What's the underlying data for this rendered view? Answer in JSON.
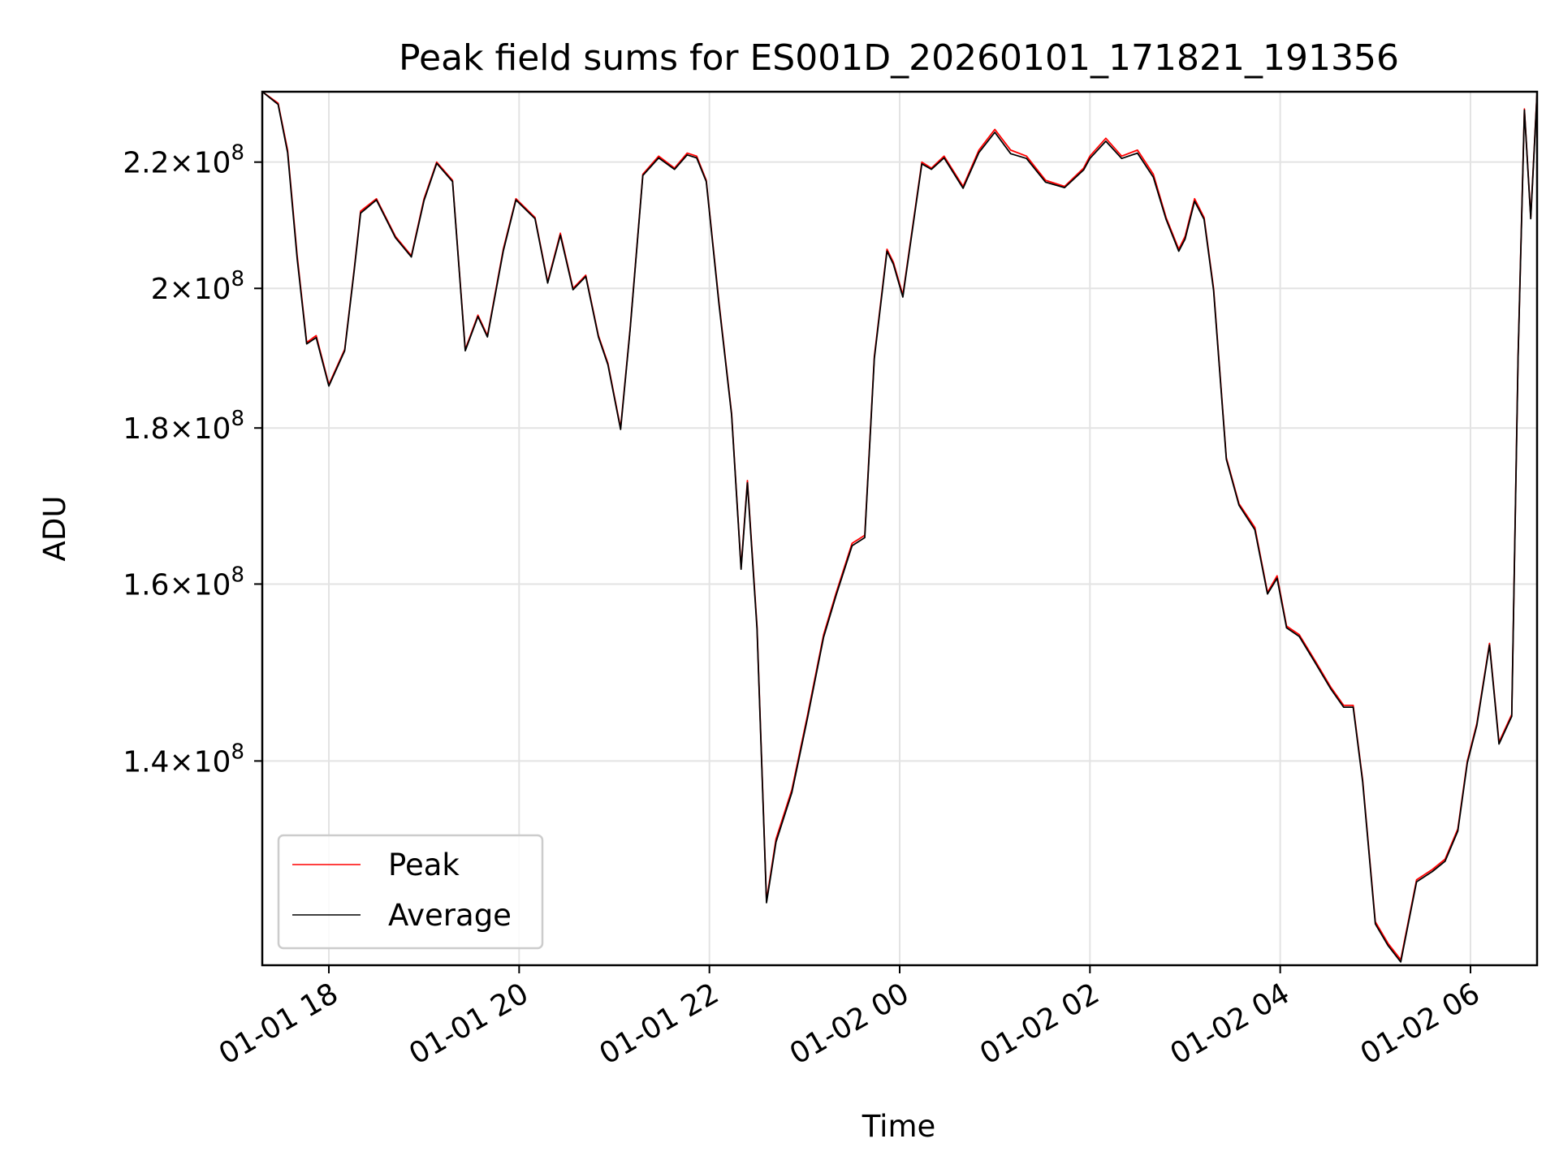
{
  "chart_data": {
    "type": "line",
    "title": "Peak field sums for ES001D_20260101_171821_191356",
    "xlabel": "Time",
    "ylabel": "ADU",
    "y_scale": "log",
    "grid": true,
    "legend_placement": "lower-left",
    "xlim": [
      "2026-01-01 17:18",
      "2026-01-02 06:42"
    ],
    "ylim": [
      120000000,
      232000000
    ],
    "x_ticks": [
      {
        "value": "2026-01-01 18:00",
        "label": "01-01 18"
      },
      {
        "value": "2026-01-01 20:00",
        "label": "01-01 20"
      },
      {
        "value": "2026-01-01 22:00",
        "label": "01-01 22"
      },
      {
        "value": "2026-01-02 00:00",
        "label": "01-02 00"
      },
      {
        "value": "2026-01-02 02:00",
        "label": "01-02 02"
      },
      {
        "value": "2026-01-02 04:00",
        "label": "01-02 04"
      },
      {
        "value": "2026-01-02 06:00",
        "label": "01-02 06"
      }
    ],
    "y_ticks": [
      {
        "value": 140000000,
        "label_mantissa": "1.4",
        "label_exponent": "8"
      },
      {
        "value": 160000000,
        "label_mantissa": "1.6",
        "label_exponent": "8"
      },
      {
        "value": 180000000,
        "label_mantissa": "1.8",
        "label_exponent": "8"
      },
      {
        "value": 200000000,
        "label_mantissa": "2",
        "label_exponent": "8"
      },
      {
        "value": 220000000,
        "label_mantissa": "2.2",
        "label_exponent": "8"
      }
    ],
    "x": [
      "2026-01-01 17:18",
      "2026-01-01 17:28",
      "2026-01-01 17:34",
      "2026-01-01 17:40",
      "2026-01-01 17:46",
      "2026-01-01 17:52",
      "2026-01-01 18:00",
      "2026-01-01 18:10",
      "2026-01-01 18:16",
      "2026-01-01 18:20",
      "2026-01-01 18:30",
      "2026-01-01 18:42",
      "2026-01-01 18:52",
      "2026-01-01 19:00",
      "2026-01-01 19:08",
      "2026-01-01 19:18",
      "2026-01-01 19:26",
      "2026-01-01 19:34",
      "2026-01-01 19:40",
      "2026-01-01 19:50",
      "2026-01-01 19:58",
      "2026-01-01 20:10",
      "2026-01-01 20:18",
      "2026-01-01 20:26",
      "2026-01-01 20:34",
      "2026-01-01 20:42",
      "2026-01-01 20:50",
      "2026-01-01 20:56",
      "2026-01-01 21:04",
      "2026-01-01 21:10",
      "2026-01-01 21:18",
      "2026-01-01 21:28",
      "2026-01-01 21:38",
      "2026-01-01 21:46",
      "2026-01-01 21:52",
      "2026-01-01 21:58",
      "2026-01-01 22:06",
      "2026-01-01 22:14",
      "2026-01-01 22:20",
      "2026-01-01 22:24",
      "2026-01-01 22:30",
      "2026-01-01 22:36",
      "2026-01-01 22:42",
      "2026-01-01 22:52",
      "2026-01-01 23:02",
      "2026-01-01 23:12",
      "2026-01-01 23:20",
      "2026-01-01 23:30",
      "2026-01-01 23:38",
      "2026-01-01 23:44",
      "2026-01-01 23:52",
      "2026-01-01 23:56",
      "2026-01-02 00:02",
      "2026-01-02 00:14",
      "2026-01-02 00:20",
      "2026-01-02 00:28",
      "2026-01-02 00:40",
      "2026-01-02 00:50",
      "2026-01-02 01:00",
      "2026-01-02 01:10",
      "2026-01-02 01:20",
      "2026-01-02 01:32",
      "2026-01-02 01:44",
      "2026-01-02 01:56",
      "2026-01-02 02:00",
      "2026-01-02 02:10",
      "2026-01-02 02:20",
      "2026-01-02 02:30",
      "2026-01-02 02:40",
      "2026-01-02 02:48",
      "2026-01-02 02:56",
      "2026-01-02 03:00",
      "2026-01-02 03:06",
      "2026-01-02 03:12",
      "2026-01-02 03:18",
      "2026-01-02 03:26",
      "2026-01-02 03:34",
      "2026-01-02 03:44",
      "2026-01-02 03:52",
      "2026-01-02 03:58",
      "2026-01-02 04:04",
      "2026-01-02 04:12",
      "2026-01-02 04:22",
      "2026-01-02 04:32",
      "2026-01-02 04:40",
      "2026-01-02 04:46",
      "2026-01-02 04:52",
      "2026-01-02 05:00",
      "2026-01-02 05:08",
      "2026-01-02 05:16",
      "2026-01-02 05:26",
      "2026-01-02 05:36",
      "2026-01-02 05:44",
      "2026-01-02 05:52",
      "2026-01-02 05:58",
      "2026-01-02 06:04",
      "2026-01-02 06:12",
      "2026-01-02 06:18",
      "2026-01-02 06:26",
      "2026-01-02 06:30",
      "2026-01-02 06:34",
      "2026-01-02 06:38",
      "2026-01-02 06:42"
    ],
    "series": [
      {
        "name": "Peak",
        "color": "#ff0000",
        "values": [
          232000000,
          230000000,
          222000000,
          205000000,
          192000000,
          193000000,
          186000000,
          191000000,
          203000000,
          212000000,
          214000000,
          208000000,
          205000000,
          214000000,
          220000000,
          217000000,
          191000000,
          196000000,
          193000000,
          206000000,
          214000000,
          211000000,
          201000000,
          208500000,
          200000000,
          202000000,
          193000000,
          189000000,
          180000000,
          194000000,
          218000000,
          221000000,
          219000000,
          221500000,
          221000000,
          217000000,
          198000000,
          182000000,
          162000000,
          173000000,
          155000000,
          126000000,
          132000000,
          137000000,
          145000000,
          154000000,
          159000000,
          165000000,
          166000000,
          190000000,
          206000000,
          204000000,
          199000000,
          220000000,
          219000000,
          221000000,
          216000000,
          222000000,
          225500000,
          222000000,
          221000000,
          217000000,
          216000000,
          219000000,
          221000000,
          224000000,
          221000000,
          222000000,
          218000000,
          211000000,
          206000000,
          208000000,
          214000000,
          211000000,
          200000000,
          176000000,
          170000000,
          167000000,
          159000000,
          161000000,
          155000000,
          154000000,
          151000000,
          148000000,
          146000000,
          146000000,
          138000000,
          124000000,
          122000000,
          120500000,
          128000000,
          129000000,
          130000000,
          133000000,
          140000000,
          144000000,
          153000000,
          142000000,
          145000000,
          190000000,
          229000000,
          211000000,
          232000000
        ]
      },
      {
        "name": "Average",
        "color": "#000000",
        "values": [
          232000000,
          229800000,
          221600000,
          204500000,
          191800000,
          192700000,
          185800000,
          190800000,
          202800000,
          211700000,
          213800000,
          207800000,
          204800000,
          213700000,
          219800000,
          216800000,
          190800000,
          195800000,
          192800000,
          205700000,
          213800000,
          210800000,
          200800000,
          208200000,
          199800000,
          201800000,
          192800000,
          188800000,
          179800000,
          193800000,
          217800000,
          220700000,
          218800000,
          221200000,
          220700000,
          216800000,
          197700000,
          181800000,
          161800000,
          172700000,
          154700000,
          125800000,
          131700000,
          136700000,
          144700000,
          153700000,
          158700000,
          164700000,
          165700000,
          189700000,
          205700000,
          203700000,
          198700000,
          219700000,
          218800000,
          220700000,
          215700000,
          221600000,
          225000000,
          221400000,
          220600000,
          216700000,
          215800000,
          218700000,
          220600000,
          223500000,
          220600000,
          221500000,
          217500000,
          210700000,
          205700000,
          207600000,
          213600000,
          210700000,
          199700000,
          175800000,
          169800000,
          166700000,
          158800000,
          160700000,
          154800000,
          153800000,
          150800000,
          147800000,
          145800000,
          145800000,
          137800000,
          123800000,
          121800000,
          120300000,
          127800000,
          128800000,
          129800000,
          132800000,
          139800000,
          143800000,
          152800000,
          141800000,
          144800000,
          189800000,
          228800000,
          210800000,
          231800000
        ]
      }
    ]
  }
}
